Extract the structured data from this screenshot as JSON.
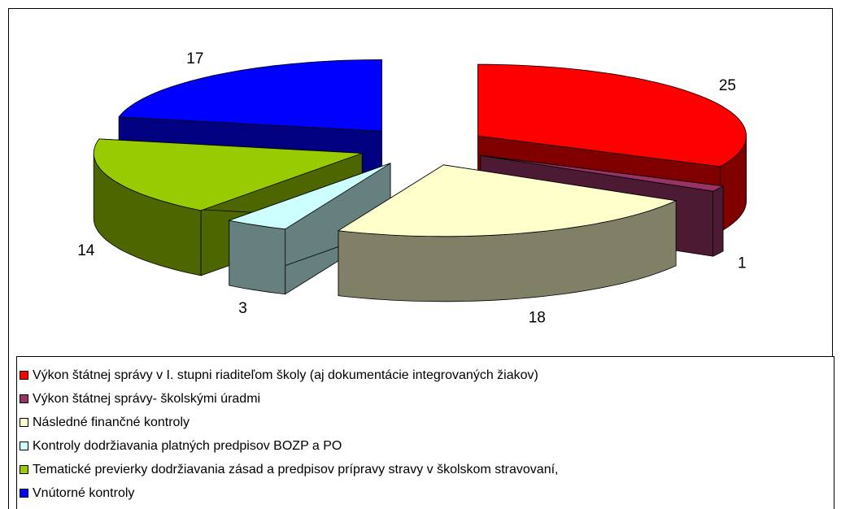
{
  "chart_data": {
    "type": "pie",
    "categories": [
      "Výkon štátnej správy v I. stupni riaditeľom školy (aj dokumentácie integrovaných žiakov)",
      "Výkon štátnej správy- školskými úradmi",
      "Následné finančné kontroly",
      "Kontroly dodržiavania platných predpisov BOZP a PO",
      "Tematické previerky dodržiavania zásad a predpisov prípravy stravy v školskom stravovaní,",
      "Vnútorné kontroly"
    ],
    "values": [
      25,
      1,
      18,
      3,
      14,
      17
    ],
    "colors": [
      "#ff0000",
      "#993366",
      "#ffffcc",
      "#ccffff",
      "#99cc00",
      "#0000ff"
    ]
  }
}
